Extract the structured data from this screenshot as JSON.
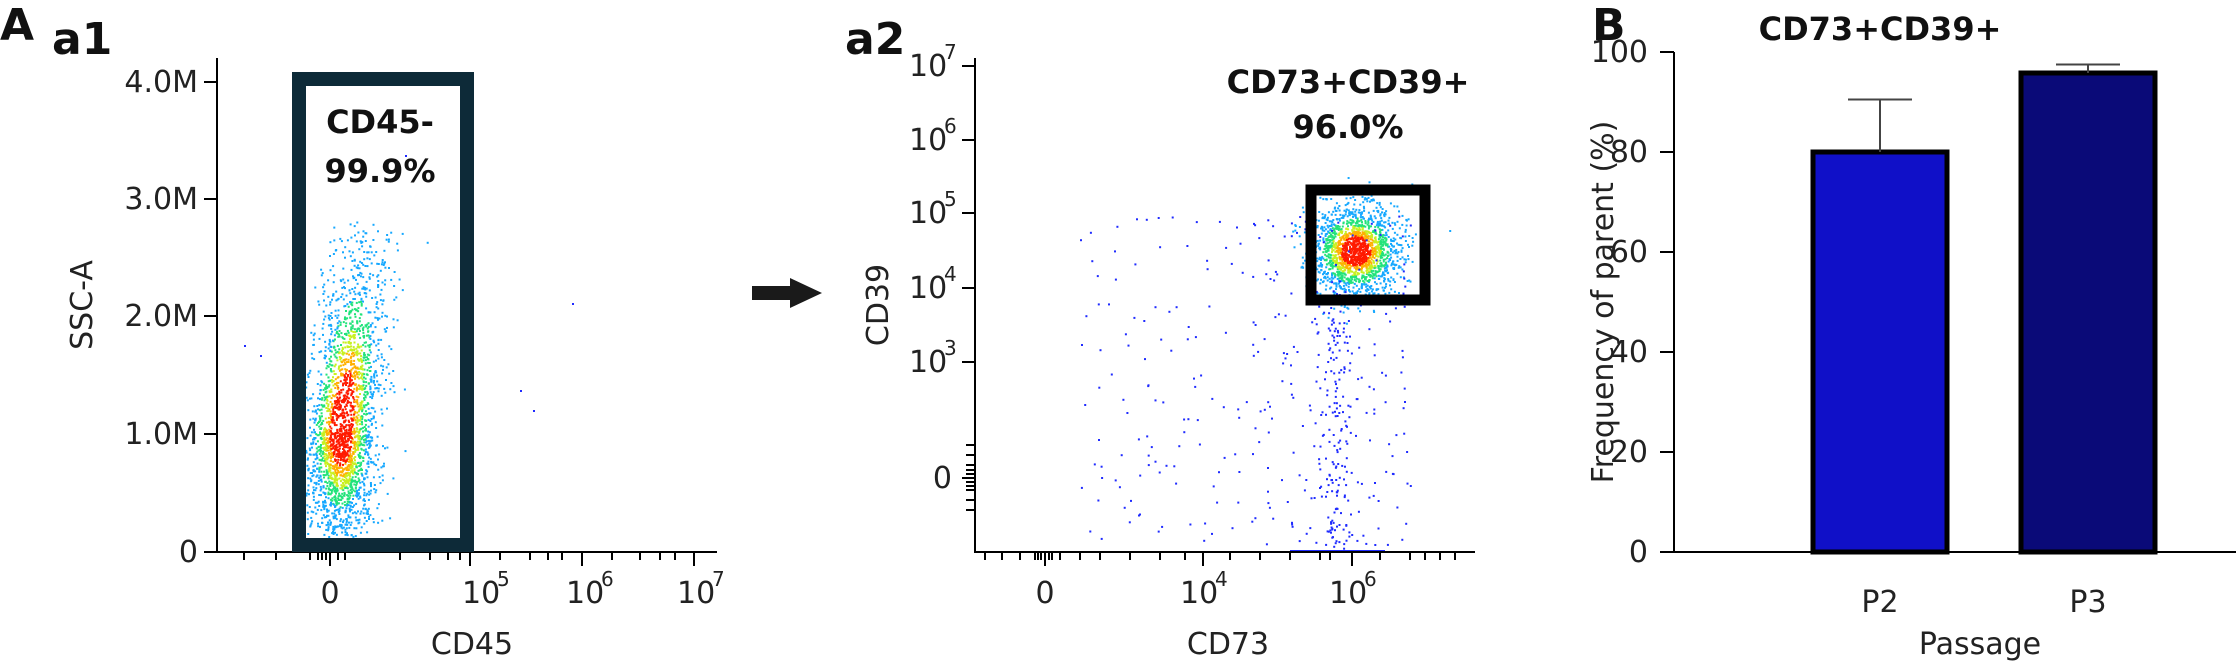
{
  "panels": {
    "A": "A",
    "a1": "a1",
    "a2": "a2",
    "B": "B"
  },
  "chart_data": [
    {
      "type": "scatter",
      "panel": "a1",
      "xlabel": "CD45",
      "ylabel": "SSC-A",
      "x_ticks": [
        "0",
        "10^5",
        "10^6",
        "10^7"
      ],
      "y_ticks": [
        "0",
        "1.0M",
        "2.0M",
        "3.0M",
        "4.0M"
      ],
      "gate": {
        "name": "CD45-",
        "percent": "99.9%"
      }
    },
    {
      "type": "scatter",
      "panel": "a2",
      "xlabel": "CD73",
      "ylabel": "CD39",
      "x_ticks": [
        "0",
        "10^4",
        "10^6"
      ],
      "y_ticks": [
        "0",
        "10^3",
        "10^4",
        "10^5",
        "10^6",
        "10^7"
      ],
      "gate": {
        "name": "CD73+CD39+",
        "percent": "96.0%"
      }
    },
    {
      "type": "bar",
      "panel": "B",
      "title": "CD73+CD39+",
      "xlabel": "Passage",
      "ylabel": "Frequency of parent (%)",
      "categories": [
        "P2",
        "P3"
      ],
      "values": [
        80,
        95.8
      ],
      "errors": [
        10.5,
        1.7
      ],
      "colors": [
        "#1010c8",
        "#0a0a78"
      ],
      "ylim": [
        0,
        100
      ],
      "y_ticks": [
        "0",
        "20",
        "40",
        "60",
        "80",
        "100"
      ]
    }
  ]
}
